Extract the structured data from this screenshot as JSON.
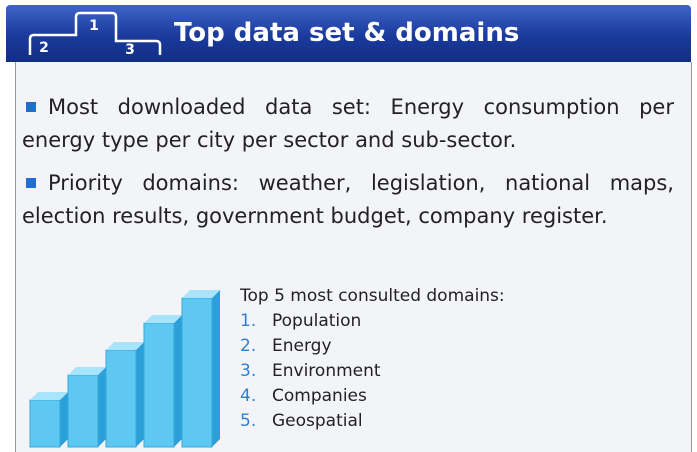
{
  "header": {
    "title": "Top data set & domains",
    "podium": [
      "1",
      "2",
      "3"
    ]
  },
  "bullets": [
    "Most downloaded data set: Energy consumption per energy type per city per sector and sub-sector.",
    "Priority domains: weather, legislation, national maps, election results, government budget, company register."
  ],
  "top_list": {
    "heading": "Top 5 most consulted domains:",
    "items": [
      {
        "number": "1.",
        "label": "Population"
      },
      {
        "number": "2.",
        "label": "Energy"
      },
      {
        "number": "3.",
        "label": "Environment"
      },
      {
        "number": "4.",
        "label": "Companies"
      },
      {
        "number": "5.",
        "label": "Geospatial"
      }
    ]
  }
}
